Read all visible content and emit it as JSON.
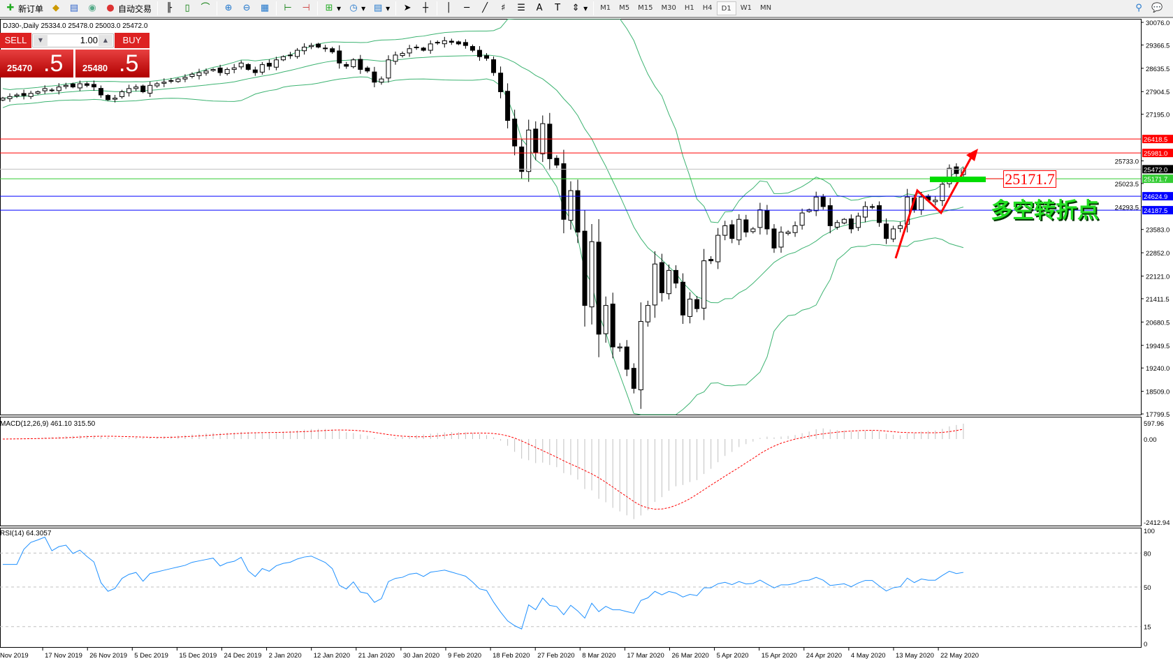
{
  "toolbar": {
    "new_order": "新订单",
    "auto_trading": "自动交易",
    "icons": [
      "new-order-icon",
      "experts-icon",
      "history-icon",
      "signals-icon",
      "auto-trading-icon",
      "bar-chart-icon",
      "candlestick-icon",
      "line-chart-icon",
      "zoom-in-icon",
      "zoom-out-icon",
      "tile-windows-icon",
      "auto-scroll-icon",
      "chart-shift-icon",
      "indicators-icon",
      "periods-icon",
      "templates-icon",
      "cursor-icon",
      "crosshair-icon",
      "vertical-line-icon",
      "horizontal-line-icon",
      "trendline-icon",
      "fibonacci-icon",
      "fibo-fan-icon",
      "text-icon",
      "text-label-icon",
      "arrows-icon",
      "search-icon",
      "chat-icon"
    ],
    "timeframes": [
      "M1",
      "M5",
      "M15",
      "M30",
      "H1",
      "H4",
      "D1",
      "W1",
      "MN"
    ],
    "active_timeframe": "D1"
  },
  "chart_header": "DJ30-,Daily  25334.0 25478.0 25003.0 25472.0",
  "trade_panel": {
    "sell_label": "SELL",
    "buy_label": "BUY",
    "lot": "1.00",
    "sell_price_main": "25470",
    "sell_price_pip": ".5",
    "buy_price_main": "25480",
    "buy_price_pip": ".5"
  },
  "colors": {
    "bull_bear_candles": "#000000",
    "bollinger": "#3cb371",
    "macd_signal": "#ff0000",
    "macd_hist": "#c0c0c0",
    "rsi": "#1e90ff",
    "arrow": "#ff0000",
    "pivot_bar": "#00dd00"
  },
  "chart_data": {
    "type": "candlestick",
    "symbol": "DJ30-",
    "period": "Daily",
    "price_axis_ticks": [
      "30076.0",
      "29366.5",
      "28635.5",
      "27904.5",
      "27195.0",
      "25733.0",
      "25023.5",
      "24293.5",
      "23583.0",
      "22852.0",
      "22121.0",
      "21411.5",
      "20680.5",
      "19949.5",
      "19240.0",
      "18509.0",
      "17799.5"
    ],
    "ylim": [
      17799.5,
      30076.0
    ],
    "closes": [
      27700,
      27750,
      27800,
      27780,
      27850,
      27900,
      28000,
      27950,
      28050,
      28100,
      28050,
      28150,
      28100,
      28050,
      27800,
      27650,
      27700,
      27900,
      28000,
      28050,
      27900,
      28100,
      28150,
      28200,
      28250,
      28300,
      28350,
      28450,
      28500,
      28550,
      28600,
      28500,
      28600,
      28650,
      28800,
      28600,
      28500,
      28750,
      28700,
      28900,
      29000,
      29050,
      29200,
      29300,
      29350,
      29300,
      29250,
      29150,
      28800,
      28700,
      28900,
      28600,
      28550,
      28200,
      28300,
      28900,
      29050,
      29100,
      29250,
      29300,
      29200,
      29400,
      29450,
      29500,
      29450,
      29400,
      29350,
      29200,
      29000,
      28950,
      28500,
      27900,
      27000,
      26200,
      25400,
      26700,
      26000,
      26900,
      25800,
      25600,
      23900,
      24800,
      23500,
      21200,
      23200,
      20300,
      21200,
      19900,
      19900,
      19200,
      18600,
      20700,
      21200,
      22500,
      21600,
      22300,
      21900,
      20900,
      21400,
      21100,
      22600,
      22600,
      23400,
      23700,
      23300,
      23900,
      23500,
      23600,
      24200,
      23600,
      23000,
      23500,
      23500,
      23700,
      24100,
      24200,
      24600,
      24300,
      23700,
      23800,
      23900,
      23600,
      24000,
      24300,
      24300,
      23800,
      23300,
      23600,
      23700,
      24600,
      24200,
      24600,
      24500,
      24500,
      25000,
      25500,
      25334,
      25472
    ],
    "horizontal_lines": [
      {
        "price": "26418.5",
        "color": "#ff0000"
      },
      {
        "price": "25981.0",
        "color": "#ff0000"
      },
      {
        "price": "25472.0",
        "color": "#000000",
        "line": "#c0c0c0"
      },
      {
        "price": "25171.7",
        "color": "#33cc33"
      },
      {
        "price": "24624.9",
        "color": "#0000ff"
      },
      {
        "price": "24187.5",
        "color": "#0000ff"
      }
    ],
    "date_labels": [
      "Nov 2019",
      "17 Nov 2019",
      "26 Nov 2019",
      "5 Dec 2019",
      "15 Dec 2019",
      "24 Dec 2019",
      "2 Jan 2020",
      "12 Jan 2020",
      "21 Jan 2020",
      "30 Jan 2020",
      "9 Feb 2020",
      "18 Feb 2020",
      "27 Feb 2020",
      "8 Mar 2020",
      "17 Mar 2020",
      "26 Mar 2020",
      "5 Apr 2020",
      "15 Apr 2020",
      "24 Apr 2020",
      "4 May 2020",
      "13 May 2020",
      "22 May 2020"
    ],
    "macd": {
      "label": "MACD(12,26,9) 461.10 315.50",
      "ticks": [
        "597.96",
        "0.00",
        "-2412.94"
      ],
      "ylim": [
        -2412.94,
        597.96
      ]
    },
    "rsi": {
      "label": "RSI(14) 64.3057",
      "ticks": [
        "100",
        "80",
        "50",
        "15",
        "0"
      ],
      "levels": [
        80,
        50,
        15
      ]
    },
    "annotations": {
      "price_label": "25171.7",
      "text": "多空转折点"
    }
  }
}
